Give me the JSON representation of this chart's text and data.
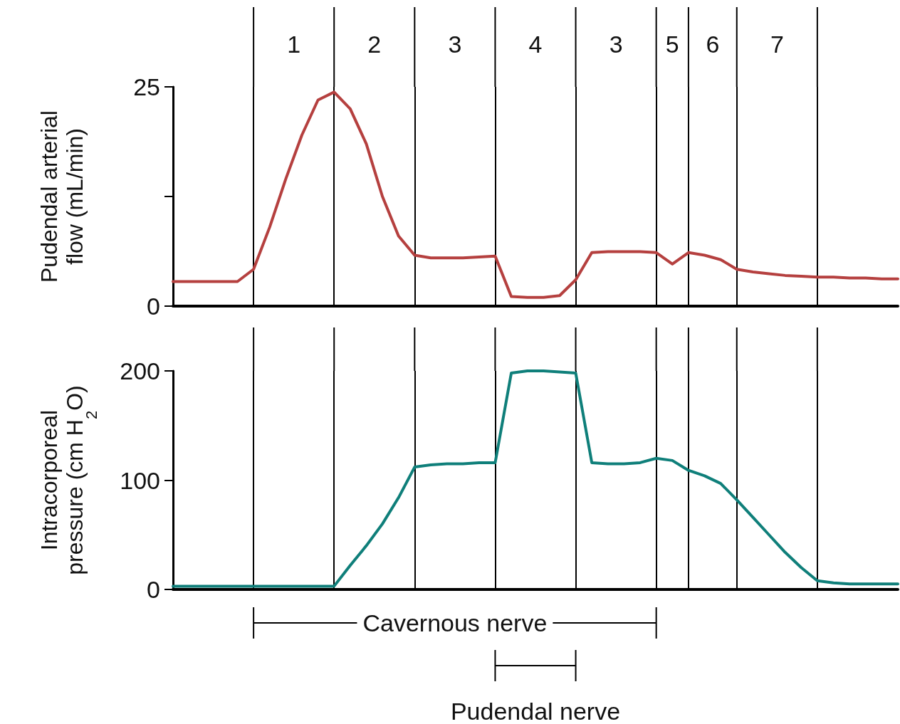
{
  "chart_data": [
    {
      "type": "line",
      "ylabel": "Pudendal arterial flow (mL/min)",
      "categories": [
        null,
        null,
        null,
        null,
        null,
        null,
        null,
        null,
        null,
        null,
        null,
        null,
        null,
        null,
        null,
        null,
        null,
        null,
        null,
        null,
        null,
        null,
        null,
        null,
        null,
        null,
        null,
        null,
        null,
        null,
        null,
        null,
        null,
        null,
        null,
        null,
        null,
        null,
        null,
        null,
        null,
        null,
        null,
        null,
        null,
        null
      ],
      "ylim": [
        0,
        25
      ],
      "yticks": [
        0,
        {
          "value": 12.5,
          "label": null
        },
        25
      ],
      "grid": "x",
      "marker": "none",
      "line_style": "solid",
      "series": [
        {
          "color": "#b5403f",
          "values": [
            2.8,
            2.8,
            2.8,
            2.8,
            2.8,
            4.2,
            9,
            14.5,
            19.5,
            23.5,
            24.4,
            22.5,
            18.5,
            12.5,
            8,
            5.8,
            5.5,
            5.5,
            5.5,
            5.6,
            5.7,
            1.1,
            1.0,
            1.0,
            1.2,
            3.0,
            6.1,
            6.2,
            6.2,
            6.2,
            6.1,
            4.8,
            6.1,
            5.8,
            5.3,
            4.2,
            3.9,
            3.7,
            3.5,
            3.4,
            3.3,
            3.3,
            3.2,
            3.2,
            3.1,
            3.1
          ]
        }
      ],
      "annotations": [
        "1",
        "2",
        "3",
        "4",
        "3",
        "5",
        "6",
        "7"
      ]
    },
    {
      "type": "line",
      "ylabel": "Intracorporeal pressure (cm H$_{2}$O)",
      "categories": [
        null,
        null,
        null,
        null,
        null,
        null,
        null,
        null,
        null,
        null,
        null,
        null,
        null,
        null,
        null,
        null,
        null,
        null,
        null,
        null,
        null,
        null,
        null,
        null,
        null,
        null,
        null,
        null,
        null,
        null,
        null,
        null,
        null,
        null,
        null,
        null,
        null,
        null,
        null,
        null,
        null,
        null,
        null,
        null,
        null,
        null
      ],
      "ylim": [
        0,
        200
      ],
      "yticks": [
        0,
        100,
        200
      ],
      "grid": "x",
      "marker": "none",
      "line_style": "solid",
      "series": [
        {
          "color": "#0f7f7a",
          "values": [
            3,
            3,
            3,
            3,
            3,
            3,
            3,
            3,
            3,
            3,
            3,
            22,
            40,
            60,
            84,
            112,
            114,
            115,
            115,
            116,
            116,
            198,
            200,
            200,
            199,
            198,
            116,
            115,
            115,
            116,
            120,
            118,
            109,
            104,
            97,
            82,
            66,
            50,
            34,
            20,
            8,
            6,
            5,
            5,
            5,
            5
          ]
        }
      ],
      "annotations": [
        "Cavernous nerve",
        "Pudendal nerve"
      ]
    }
  ]
}
